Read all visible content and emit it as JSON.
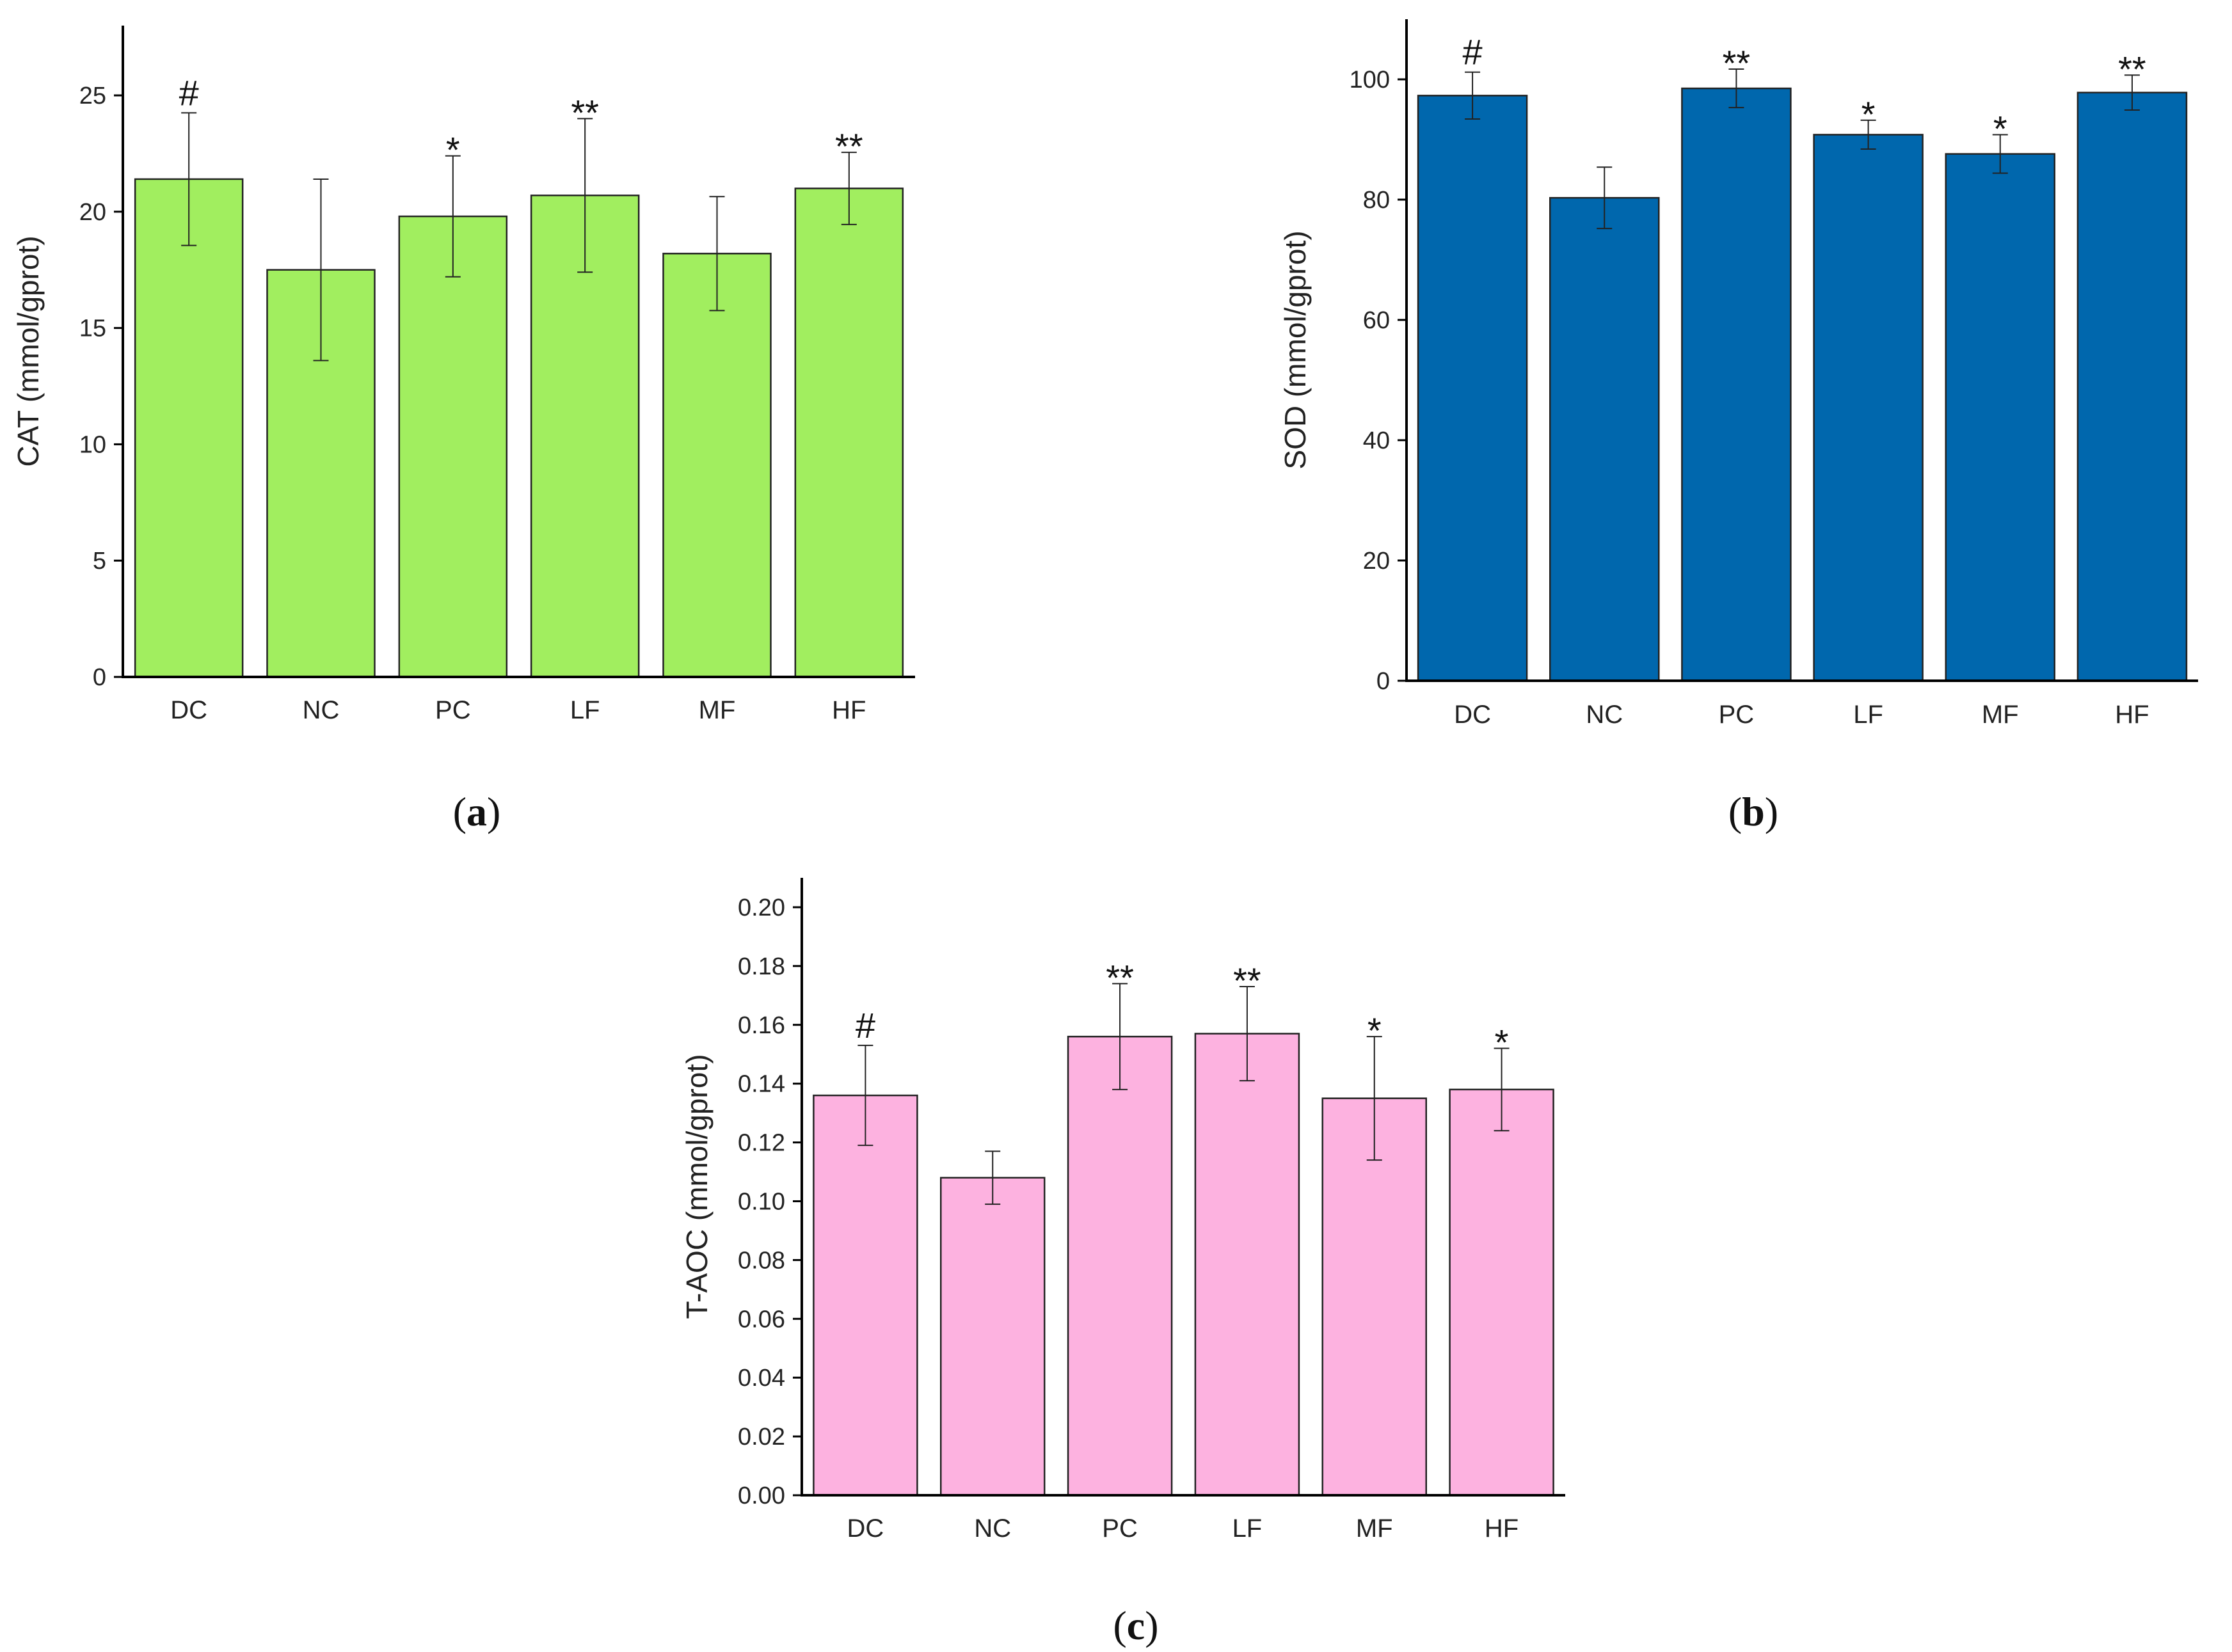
{
  "chart_data": [
    {
      "type": "bar",
      "panel": "(a)",
      "panel_letter": "a",
      "ylabel": "CAT (mmol/gprot)",
      "categories": [
        "DC",
        "NC",
        "PC",
        "LF",
        "MF",
        "HF"
      ],
      "values": [
        21.4,
        17.5,
        19.8,
        20.7,
        18.2,
        21.0
      ],
      "errors": [
        2.85,
        3.9,
        2.6,
        3.3,
        2.45,
        1.55
      ],
      "significance": [
        "#",
        "",
        "*",
        "**",
        "",
        "**"
      ],
      "ylim": [
        0,
        28
      ],
      "yticks": [
        0,
        5,
        10,
        15,
        20,
        25
      ],
      "tick_format": "0",
      "color": "#a1ee5f"
    },
    {
      "type": "bar",
      "panel": "(b)",
      "panel_letter": "b",
      "ylabel": "SOD (mmol/gprot)",
      "categories": [
        "DC",
        "NC",
        "PC",
        "LF",
        "MF",
        "HF"
      ],
      "values": [
        97.3,
        80.3,
        98.5,
        90.8,
        87.6,
        97.8
      ],
      "errors": [
        3.9,
        5.1,
        3.2,
        2.4,
        3.2,
        2.9
      ],
      "significance": [
        "#",
        "",
        "**",
        "*",
        "*",
        "**"
      ],
      "ylim": [
        0,
        110
      ],
      "yticks": [
        0,
        20,
        40,
        60,
        80,
        100
      ],
      "tick_format": "0",
      "color": "#0067ad"
    },
    {
      "type": "bar",
      "panel": "(c)",
      "panel_letter": "c",
      "ylabel": "T-AOC (mmol/gprot)",
      "categories": [
        "DC",
        "NC",
        "PC",
        "LF",
        "MF",
        "HF"
      ],
      "values": [
        0.136,
        0.108,
        0.156,
        0.157,
        0.135,
        0.138
      ],
      "errors": [
        0.017,
        0.009,
        0.018,
        0.016,
        0.021,
        0.014
      ],
      "significance": [
        "#",
        "",
        "**",
        "**",
        "*",
        "*"
      ],
      "ylim": [
        0,
        0.21
      ],
      "yticks": [
        0.0,
        0.02,
        0.04,
        0.06,
        0.08,
        0.1,
        0.12,
        0.14,
        0.16,
        0.18,
        0.2
      ],
      "tick_format": "0.00",
      "color": "#fdb2e0"
    }
  ]
}
